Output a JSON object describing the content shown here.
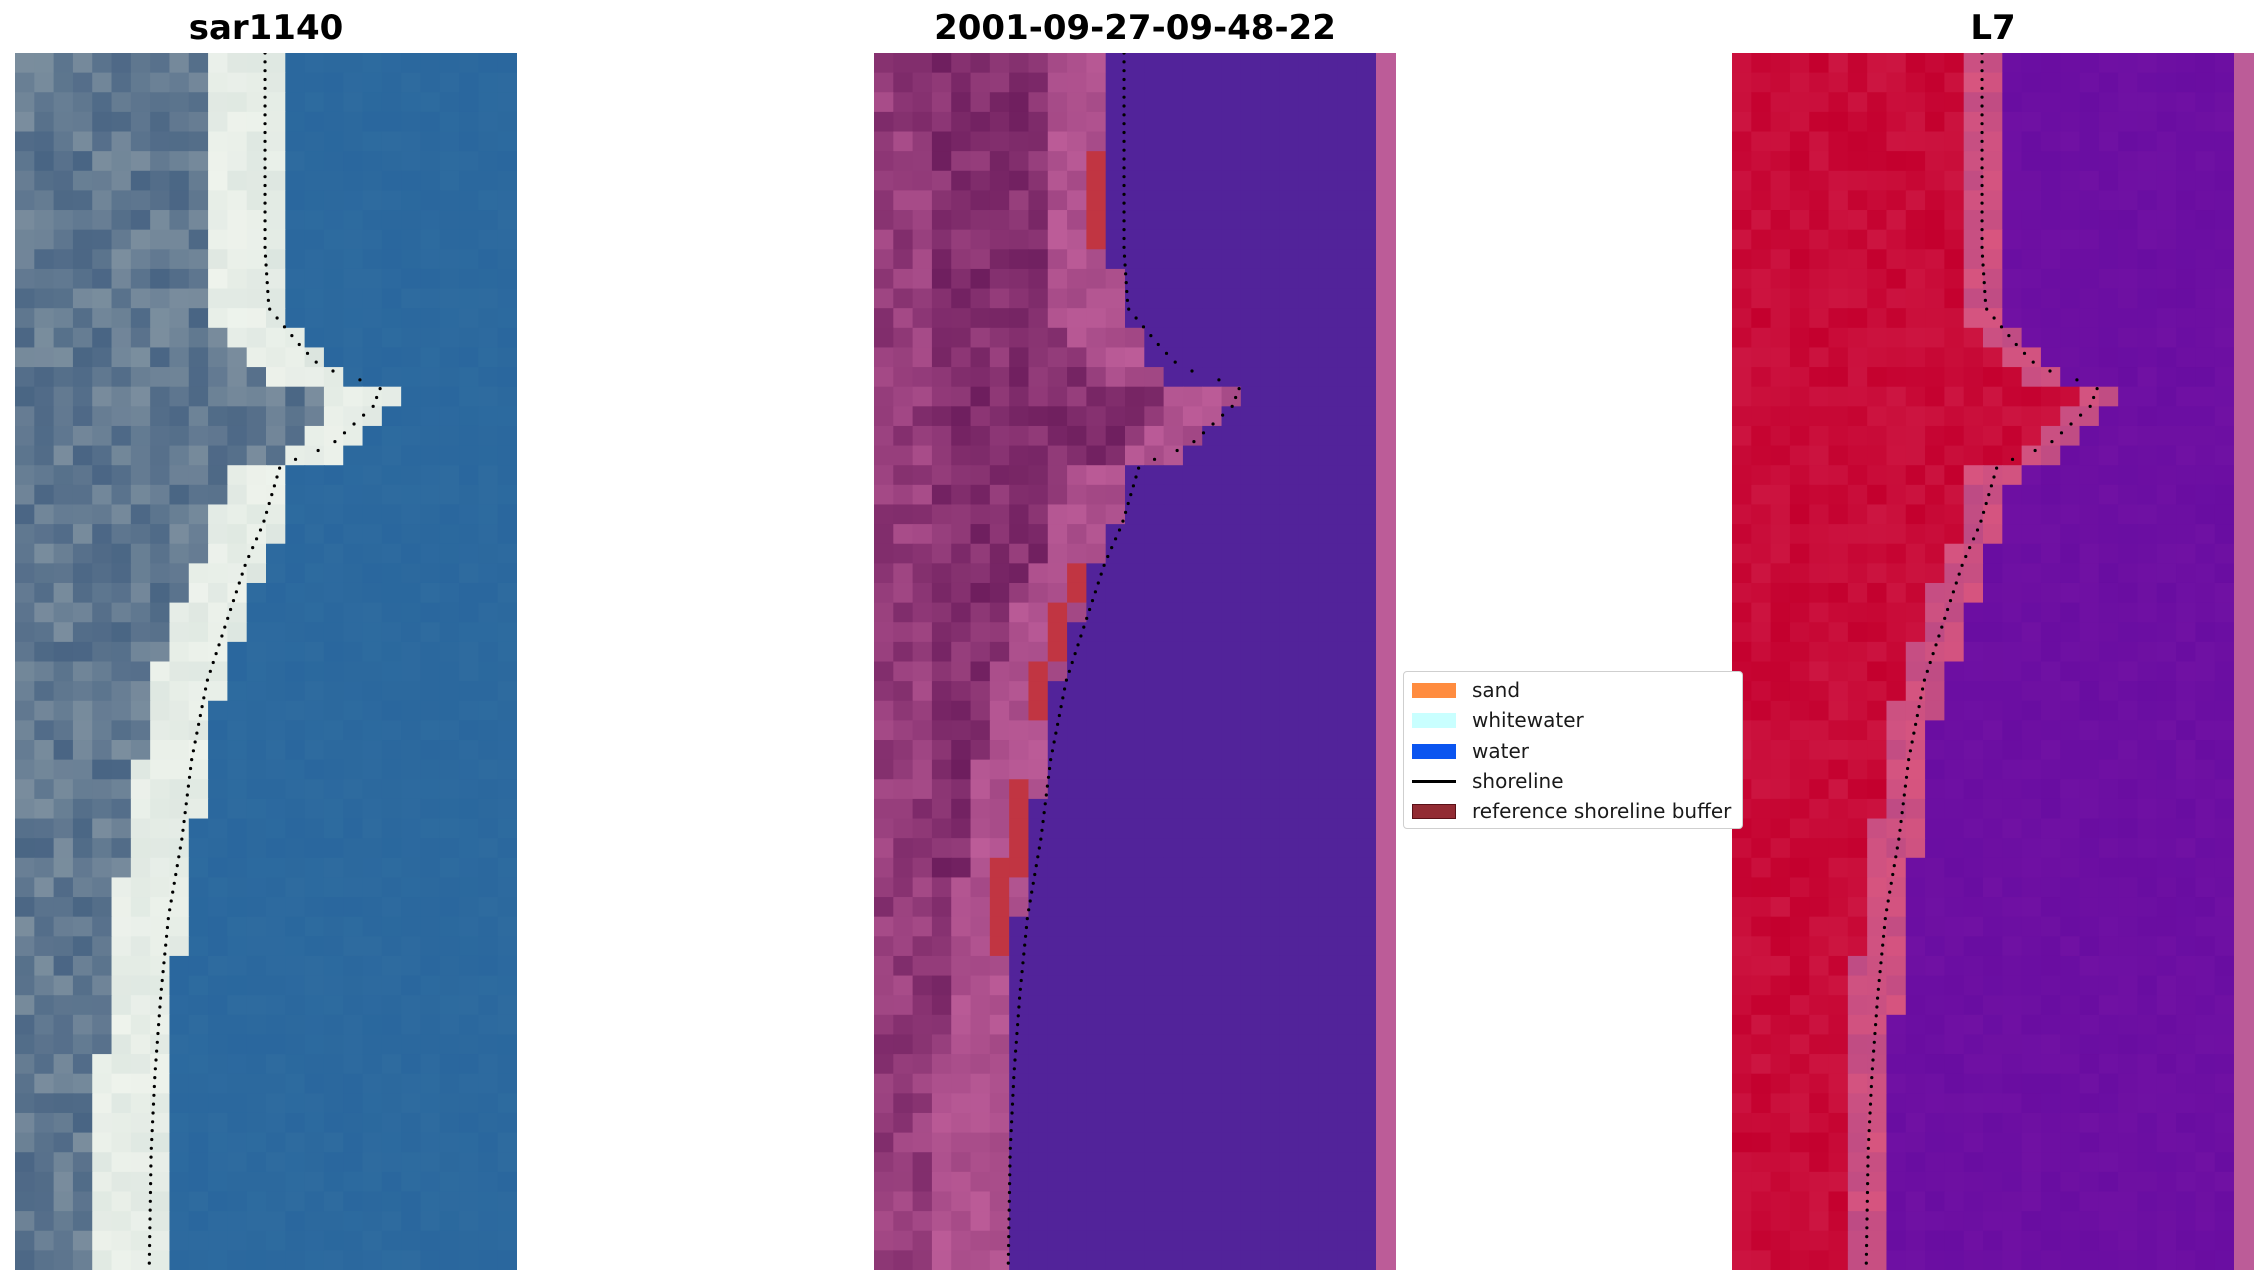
{
  "panels": [
    {
      "title": "sar1140",
      "kind": "rgb"
    },
    {
      "title": "2001-09-27-09-48-22",
      "kind": "classified"
    },
    {
      "title": "L7",
      "kind": "mndwi"
    }
  ],
  "legend": {
    "items": [
      {
        "label": "sand",
        "color": "#FF8C3F",
        "type": "patch"
      },
      {
        "label": "whitewater",
        "color": "#C9FFFF",
        "type": "patch"
      },
      {
        "label": "water",
        "color": "#0B55F0",
        "type": "patch"
      },
      {
        "label": "shoreline",
        "color": "#000000",
        "type": "line"
      },
      {
        "label": "reference shoreline buffer",
        "color": "#922B33",
        "type": "patch"
      }
    ]
  },
  "colors": {
    "rgb_water": "#2A679E",
    "rgb_whitewater": "#EEF3EC",
    "rgb_land": "#7B8E9E",
    "class_water": "#52239A",
    "class_land_dark": "#6E1E5E",
    "class_land_light": "#BC5C98",
    "class_buffer_red": "#C13542",
    "mndwi_land": "#C4002E",
    "mndwi_mid": "#D8557F",
    "mndwi_water": "#7011A3"
  }
}
